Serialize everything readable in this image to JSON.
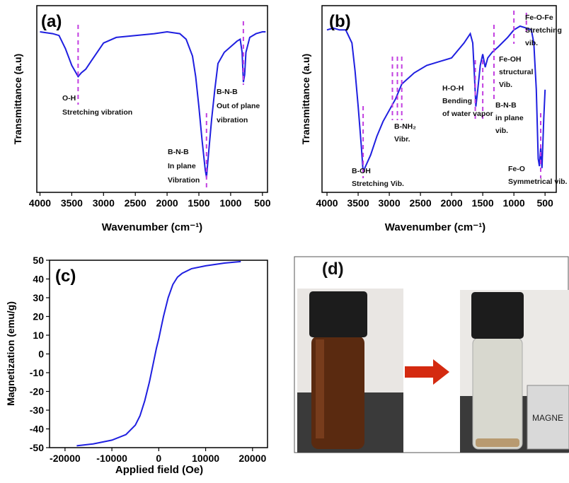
{
  "chart_data": [
    {
      "type": "line",
      "panel_label": "(a)",
      "x_label": "Wavenumber (cm⁻¹)",
      "y_label": "Transmittance (a.u)",
      "color": "#1f1fe0",
      "xlim": [
        4050,
        420
      ],
      "ylim": [
        0,
        100
      ],
      "xticks": [
        4000,
        3500,
        3000,
        2500,
        2000,
        1500,
        1000,
        500
      ],
      "x": [
        4000,
        3800,
        3700,
        3600,
        3500,
        3400,
        3350,
        3280,
        3200,
        3000,
        2800,
        2500,
        2200,
        2000,
        1800,
        1700,
        1600,
        1550,
        1500,
        1450,
        1400,
        1380,
        1350,
        1300,
        1250,
        1200,
        1100,
        1000,
        900,
        850,
        820,
        800,
        780,
        760,
        700,
        600,
        500,
        450
      ],
      "values": [
        86,
        85,
        84,
        77,
        68,
        62,
        64,
        66,
        70,
        80,
        83,
        84,
        85,
        86,
        85,
        82,
        73,
        62,
        46,
        28,
        12,
        8,
        20,
        39,
        55,
        69,
        75,
        78,
        81,
        82,
        75,
        59,
        63,
        75,
        83,
        85,
        86,
        86
      ],
      "annotations": [
        {
          "x": [
            3400
          ],
          "lines": [
            "O-H",
            "Stretching vibration"
          ]
        },
        {
          "x": [
            1380
          ],
          "lines": [
            "B-N-B",
            "In plane",
            "Vibration"
          ]
        },
        {
          "x": [
            800
          ],
          "lines": [
            "B-N-B",
            "Out of plane",
            "vibration"
          ]
        }
      ]
    },
    {
      "type": "line",
      "panel_label": "(b)",
      "x_label": "Wavenumber (cm⁻¹)",
      "y_label": "Transmittance (a.u)",
      "color": "#1f1fe0",
      "xlim": [
        4080,
        320
      ],
      "ylim": [
        0,
        100
      ],
      "xticks": [
        4000,
        3500,
        3000,
        2500,
        2000,
        1500,
        1000,
        500
      ],
      "x": [
        4000,
        3900,
        3800,
        3700,
        3600,
        3550,
        3500,
        3450,
        3420,
        3380,
        3300,
        3200,
        3100,
        3000,
        2900,
        2800,
        2600,
        2400,
        2200,
        2000,
        1800,
        1700,
        1660,
        1630,
        1610,
        1580,
        1540,
        1500,
        1460,
        1420,
        1350,
        1250,
        1100,
        1000,
        900,
        800,
        720,
        680,
        640,
        610,
        590,
        570,
        550,
        520,
        500
      ],
      "values": [
        87,
        88,
        87,
        87,
        80,
        65,
        46,
        25,
        11,
        14,
        20,
        30,
        38,
        44,
        50,
        58,
        64,
        68,
        70,
        72,
        80,
        85,
        80,
        60,
        46,
        55,
        68,
        74,
        67,
        72,
        75,
        78,
        83,
        87,
        89,
        88,
        87,
        80,
        55,
        18,
        14,
        24,
        13,
        40,
        55
      ],
      "annotations": [
        {
          "x": [
            3420
          ],
          "lines": [
            "B-OH",
            "Stretching Vib."
          ]
        },
        {
          "x": [
            2950,
            2870,
            2800
          ],
          "lines": [
            "B-NH₂",
            "Vibr."
          ]
        },
        {
          "x": [
            1620,
            1500
          ],
          "lines": [
            "H-O-H",
            "Bending",
            "of water vapor"
          ]
        },
        {
          "x": [
            1320
          ],
          "lines": [
            "B-N-B",
            "in plane",
            "vib."
          ]
        },
        {
          "x": [
            1000
          ],
          "lines": [
            "Fe-OH",
            "structural",
            "Vib."
          ]
        },
        {
          "x": [
            800
          ],
          "lines": [
            "Fe-O-Fe",
            "Stretching",
            "vib."
          ]
        },
        {
          "x": [
            570
          ],
          "lines": [
            "Fe-O",
            "Symmetrical vib."
          ]
        }
      ]
    },
    {
      "type": "line",
      "panel_label": "(c)",
      "x_label": "Applied field (Oe)",
      "y_label": "Magnetization (emu/g)",
      "color": "#1f1fe0",
      "xlim": [
        -23300,
        23200
      ],
      "ylim": [
        -50,
        50
      ],
      "xticks": [
        -20000,
        -10000,
        0,
        10000,
        20000
      ],
      "yticks": [
        -50,
        -40,
        -30,
        -20,
        -10,
        0,
        10,
        20,
        30,
        40,
        50
      ],
      "x": [
        -17500,
        -14000,
        -10000,
        -7000,
        -5000,
        -4000,
        -3000,
        -2000,
        -1500,
        -1000,
        -500,
        0,
        500,
        1000,
        1500,
        2000,
        3000,
        4000,
        5000,
        7000,
        10000,
        14000,
        17500
      ],
      "values": [
        -49,
        -48,
        -46,
        -43,
        -38,
        -33,
        -25,
        -15,
        -9,
        -3,
        3,
        8,
        14,
        20,
        25,
        30,
        37,
        41,
        43,
        45.5,
        47,
        48.5,
        49.3
      ]
    }
  ],
  "photo": {
    "label": "(d)",
    "tag": "MAGNE"
  }
}
